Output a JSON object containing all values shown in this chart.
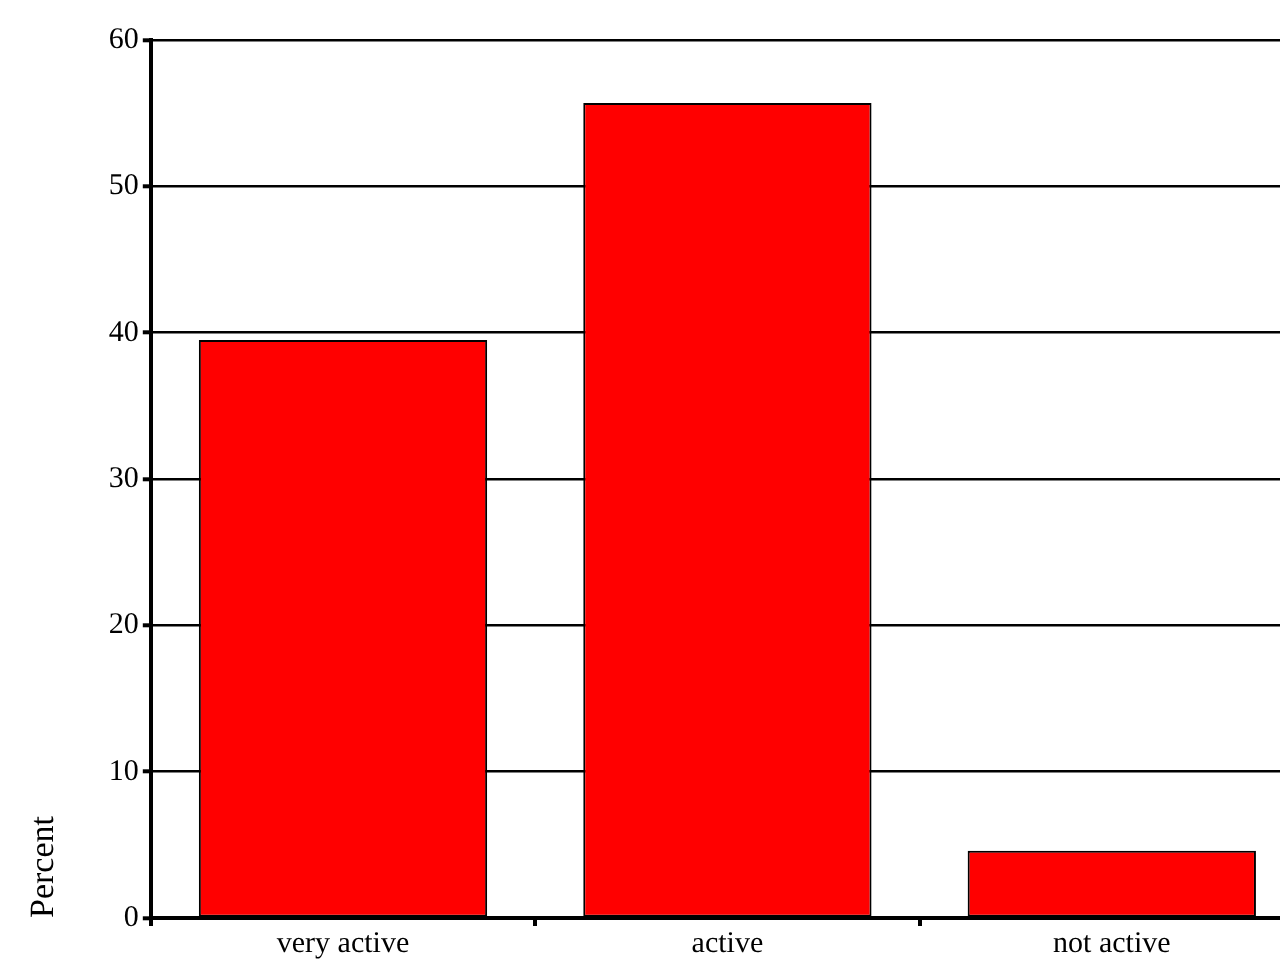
{
  "chart_data": {
    "type": "bar",
    "ylabel": "Percent",
    "categories": [
      "very active",
      "active",
      "not active"
    ],
    "values": [
      39.5,
      55.7,
      4.6
    ],
    "color": "#ff0000",
    "ylim": [
      0,
      60
    ],
    "yticks": [
      0,
      10,
      20,
      30,
      40,
      50,
      60
    ],
    "grid": "y",
    "legend": false
  }
}
